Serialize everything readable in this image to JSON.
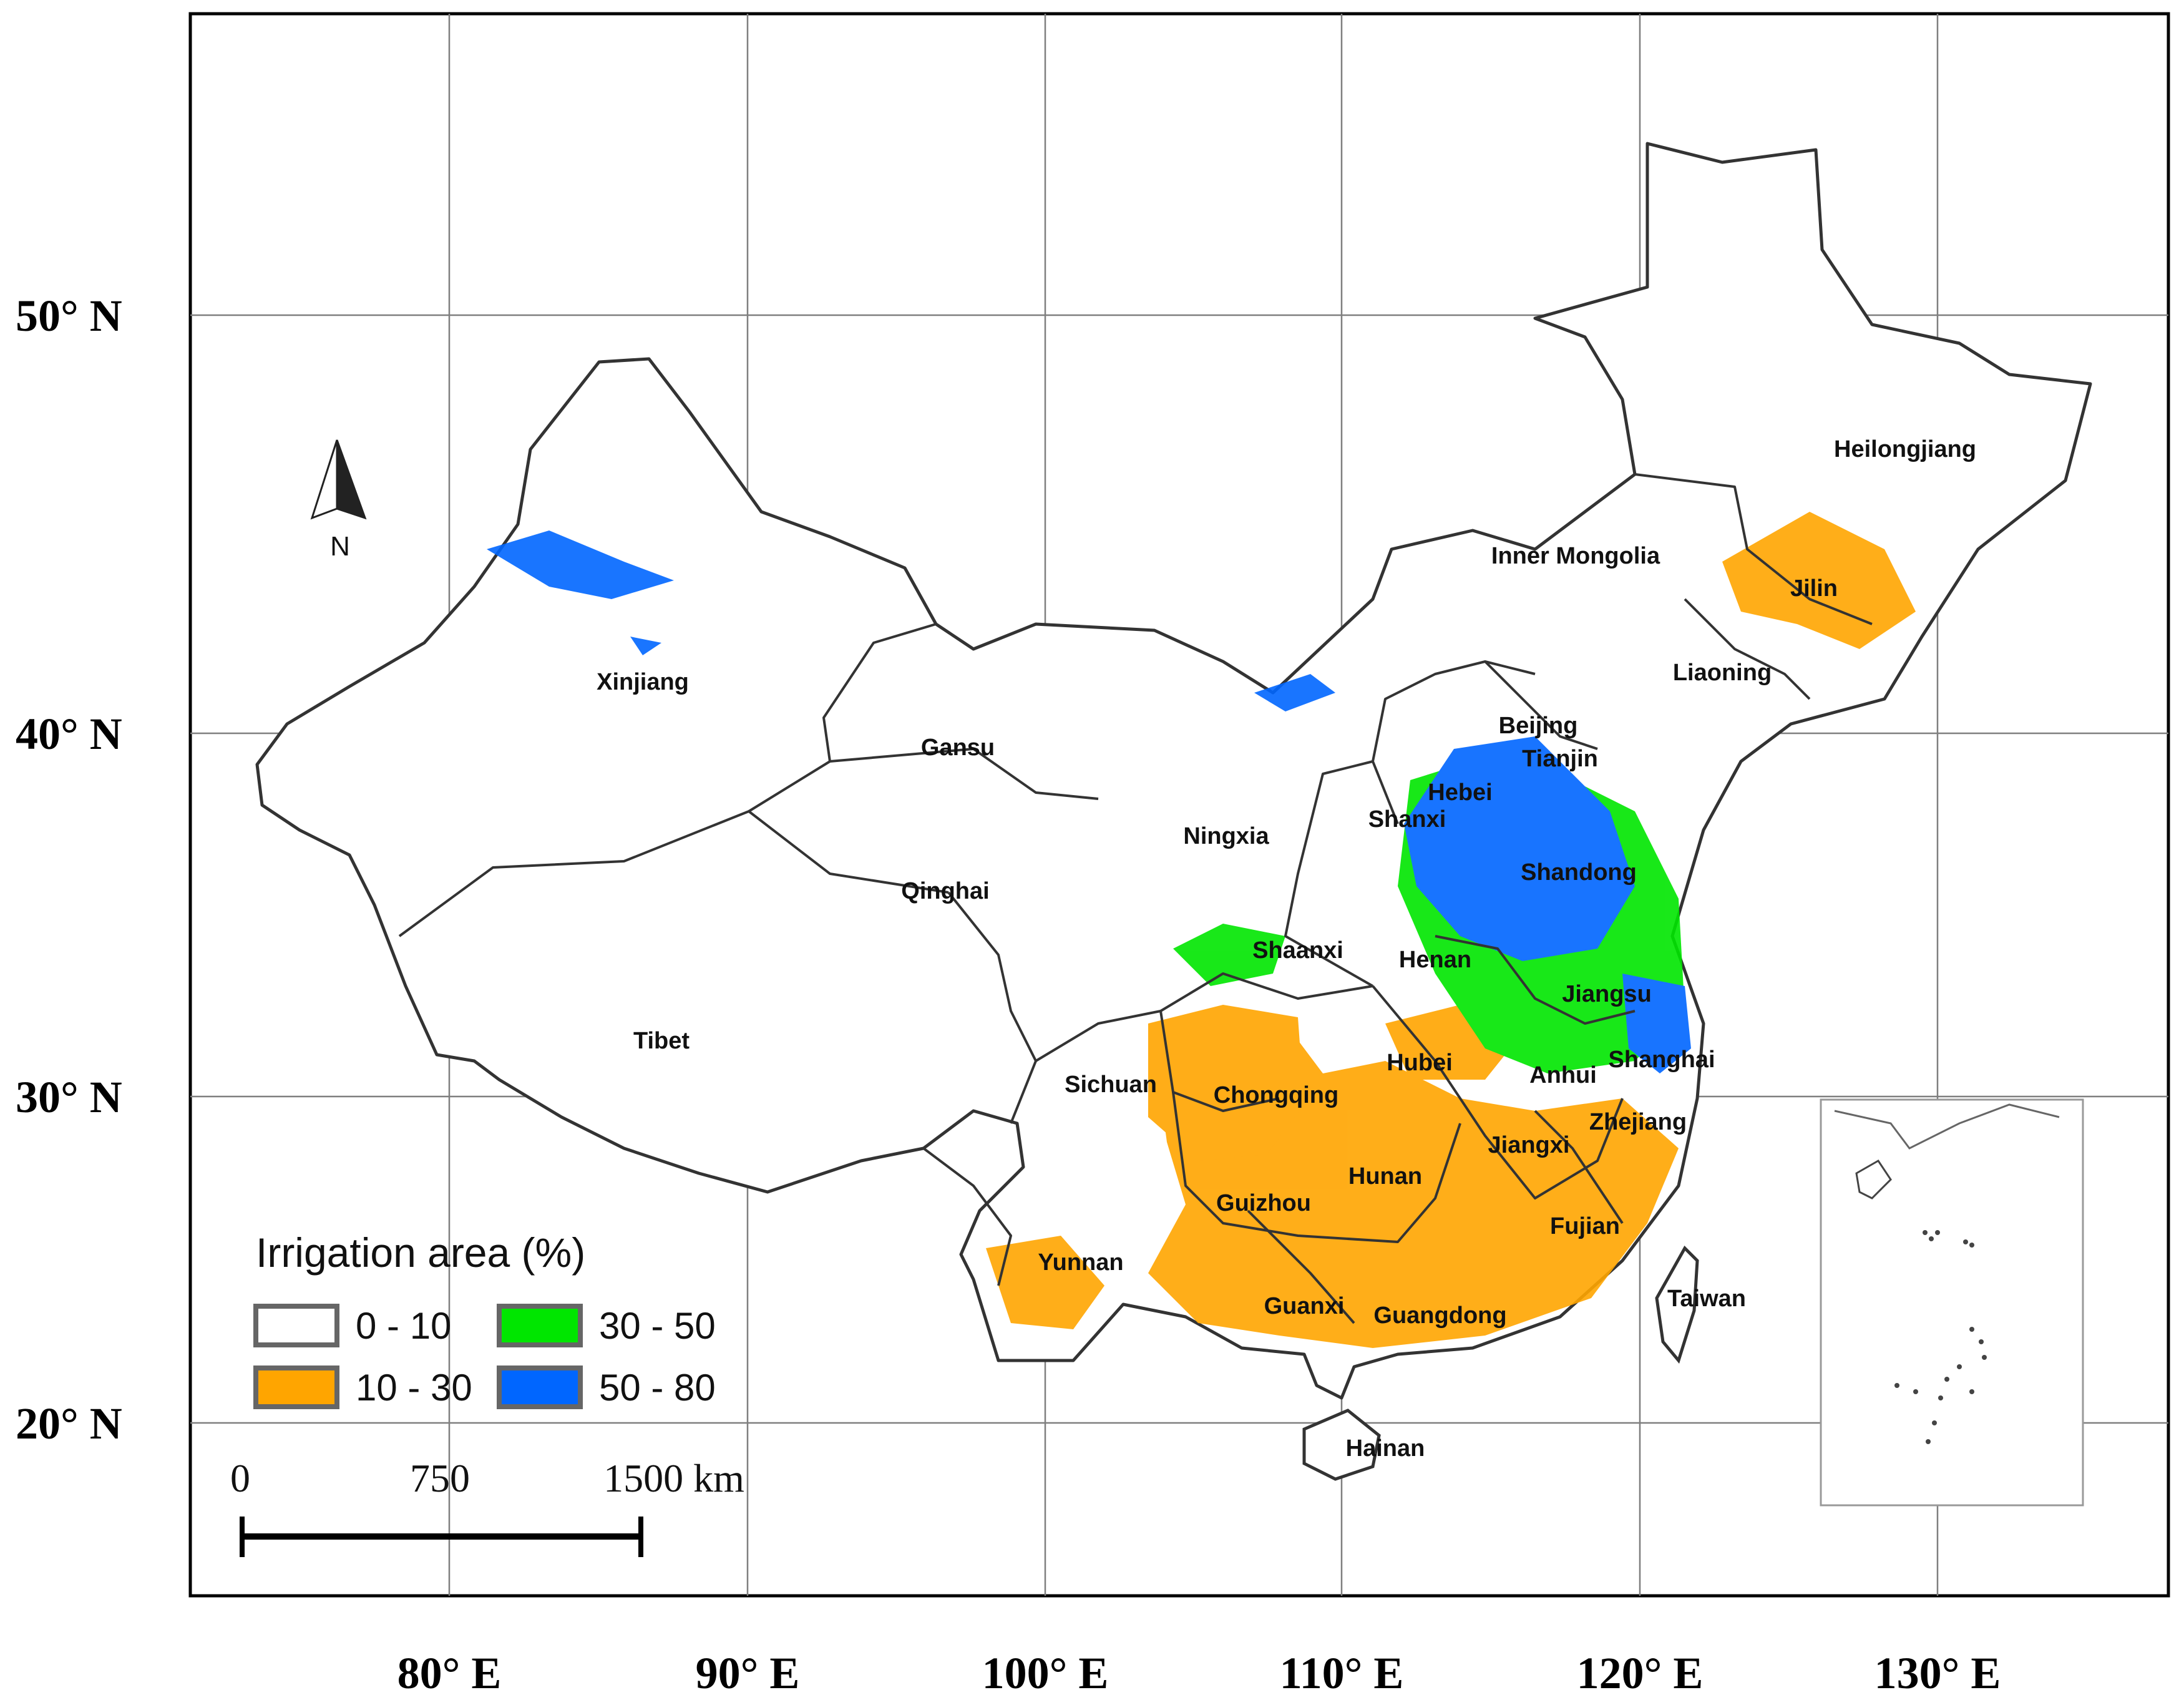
{
  "lon_ticks": [
    "80° E",
    "90° E",
    "100° E",
    "110° E",
    "120° E",
    "130° E"
  ],
  "lat_ticks": [
    "50° N",
    "40° N",
    "30° N",
    "20° N"
  ],
  "north_arrow": {
    "label": "N",
    "icon": "north-arrow-icon"
  },
  "provinces": {
    "xinjiang": "Xinjiang",
    "tibet": "Tibet",
    "qinghai": "Qinghai",
    "gansu": "Gansu",
    "ningxia": "Ningxia",
    "inner_mongolia": "Inner Mongolia",
    "heilongjiang": "Heilongjiang",
    "jilin": "Jilin",
    "liaoning": "Liaoning",
    "beijing": "Beijing",
    "tianjin": "Tianjin",
    "hebei": "Hebei",
    "shanxi": "Shanxi",
    "shandong": "Shandong",
    "shaanxi": "Shaanxi",
    "henan": "Henan",
    "jiangsu": "Jiangsu",
    "anhui": "Anhui",
    "shanghai": "Shanghai",
    "hubei": "Hubei",
    "sichuan": "Sichuan",
    "chongqing": "Chongqing",
    "zhejiang": "Zhejiang",
    "jiangxi": "Jiangxi",
    "hunan": "Hunan",
    "guizhou": "Guizhou",
    "fujian": "Fujian",
    "yunnan": "Yunnan",
    "guanxi": "Guanxi",
    "guangdong": "Guangdong",
    "taiwan": "Taiwan",
    "hainan": "Hainan"
  },
  "legend": {
    "title": "Irrigation area (%)",
    "classes": [
      {
        "label": "0 - 10",
        "color": "#ffffff"
      },
      {
        "label": "10 - 30",
        "color": "#ffa500"
      },
      {
        "label": "30 - 50",
        "color": "#00e600"
      },
      {
        "label": "50 - 80",
        "color": "#0066ff"
      }
    ]
  },
  "scale_bar": {
    "labels": [
      "0",
      "750",
      "1500 km"
    ]
  },
  "colors": {
    "low": "#ffffff",
    "mid": "#ffa500",
    "high": "#00e600",
    "very_high": "#0066ff",
    "border": "#333333",
    "grid": "#7f7f7f"
  }
}
